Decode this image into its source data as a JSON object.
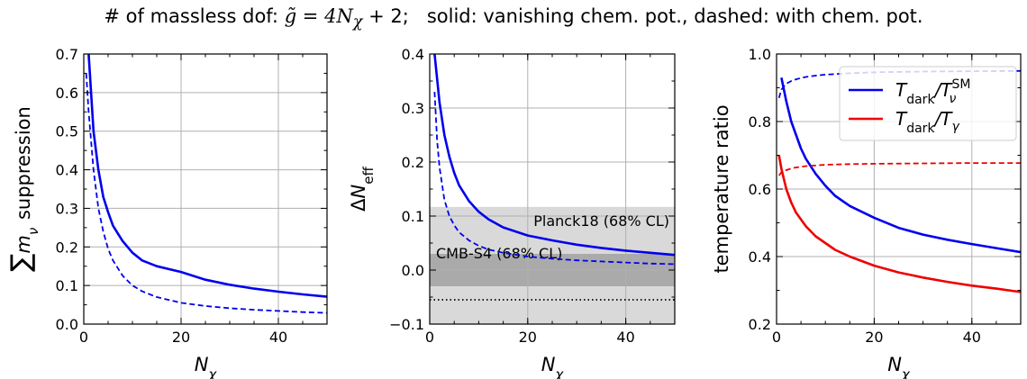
{
  "suptitle": {
    "prefix": "# of massless dof: ",
    "formula": "g̃ = 4N",
    "formula_sub": "χ",
    "formula_tail": " + 2;",
    "suffix": "   solid: vanishing chem. pot., dashed: with chem. pot."
  },
  "colors": {
    "blue": "#0000ee",
    "red": "#ee0000",
    "band_light": "#d9d9d9",
    "band_dark": "#aaaaaa",
    "grid": "#b0b0b0"
  },
  "chart_data": [
    {
      "type": "line",
      "xlabel": "N_χ",
      "ylabel": "∑m_ν suppression",
      "xlim": [
        0,
        50
      ],
      "ylim": [
        0.0,
        0.7
      ],
      "xticks": [
        0,
        20,
        40
      ],
      "yticks": [
        0.0,
        0.1,
        0.2,
        0.3,
        0.4,
        0.5,
        0.6,
        0.7
      ],
      "ytick_labels": [
        "0.0",
        "0.1",
        "0.2",
        "0.3",
        "0.4",
        "0.5",
        "0.6",
        "0.7"
      ],
      "grid": true,
      "series": [
        {
          "style": "solid",
          "color": "blue",
          "x": [
            1,
            2,
            3,
            4,
            5,
            6,
            8,
            10,
            12,
            15,
            20,
            25,
            30,
            35,
            40,
            45,
            50
          ],
          "y": [
            0.7,
            0.5,
            0.4,
            0.33,
            0.29,
            0.255,
            0.215,
            0.185,
            0.165,
            0.15,
            0.135,
            0.115,
            0.102,
            0.092,
            0.084,
            0.077,
            0.071
          ]
        },
        {
          "style": "dashed",
          "color": "blue",
          "x": [
            0.5,
            1,
            2,
            3,
            4,
            5,
            6,
            8,
            10,
            12,
            15,
            20,
            25,
            30,
            35,
            40,
            45,
            50
          ],
          "y": [
            0.65,
            0.55,
            0.4,
            0.3,
            0.24,
            0.195,
            0.165,
            0.125,
            0.1,
            0.085,
            0.07,
            0.055,
            0.047,
            0.041,
            0.037,
            0.034,
            0.031,
            0.029
          ]
        }
      ]
    },
    {
      "type": "line",
      "xlabel": "N_χ",
      "ylabel": "ΔN_eff",
      "xlim": [
        0,
        50
      ],
      "ylim": [
        -0.1,
        0.4
      ],
      "xticks": [
        0,
        20,
        40
      ],
      "yticks": [
        -0.1,
        0.0,
        0.1,
        0.2,
        0.3,
        0.4
      ],
      "ytick_labels": [
        "−0.1",
        "0.0",
        "0.1",
        "0.2",
        "0.3",
        "0.4"
      ],
      "grid": true,
      "bands": [
        {
          "label": "Planck18 (68% CL)",
          "y0": -0.1,
          "y1": 0.117,
          "color": "band_light"
        },
        {
          "label": "CMB-S4 (68% CL)",
          "y0": -0.03,
          "y1": 0.03,
          "color": "band_dark"
        }
      ],
      "hlines": [
        {
          "y": -0.055,
          "style": "dotted"
        }
      ],
      "series": [
        {
          "style": "solid",
          "color": "blue",
          "x": [
            1,
            2,
            3,
            4,
            5,
            6,
            8,
            10,
            12,
            15,
            20,
            25,
            30,
            35,
            40,
            45,
            50
          ],
          "y": [
            0.4,
            0.31,
            0.25,
            0.21,
            0.18,
            0.157,
            0.128,
            0.108,
            0.094,
            0.079,
            0.064,
            0.055,
            0.047,
            0.041,
            0.036,
            0.032,
            0.028
          ]
        },
        {
          "style": "dashed",
          "color": "blue",
          "x": [
            1,
            1.5,
            2,
            3,
            4,
            5,
            6,
            8,
            10,
            12,
            15,
            20,
            25,
            30,
            35,
            40,
            45,
            50
          ],
          "y": [
            0.33,
            0.24,
            0.19,
            0.13,
            0.1,
            0.083,
            0.07,
            0.055,
            0.045,
            0.038,
            0.032,
            0.025,
            0.021,
            0.018,
            0.016,
            0.014,
            0.012,
            0.011
          ]
        }
      ]
    },
    {
      "type": "line",
      "xlabel": "N_χ",
      "ylabel": "temperature ratio",
      "xlim": [
        0,
        50
      ],
      "ylim": [
        0.2,
        1.0
      ],
      "xticks": [
        0,
        20,
        40
      ],
      "yticks": [
        0.2,
        0.4,
        0.6,
        0.8,
        1.0
      ],
      "ytick_labels": [
        "0.2",
        "0.4",
        "0.6",
        "0.8",
        "1.0"
      ],
      "grid": true,
      "legend": "top-right",
      "legend_entries": [
        {
          "main": "T",
          "sub": "dark",
          "slash": "/T",
          "sub2": "ν",
          "sup2": "SM",
          "color": "blue"
        },
        {
          "main": "T",
          "sub": "dark",
          "slash": "/T",
          "sub2": "γ",
          "sup2": "",
          "color": "red"
        }
      ],
      "series": [
        {
          "style": "solid",
          "color": "blue",
          "x": [
            1,
            2,
            3,
            4,
            5,
            6,
            8,
            10,
            12,
            15,
            20,
            25,
            30,
            35,
            40,
            45,
            50
          ],
          "y": [
            0.93,
            0.86,
            0.8,
            0.76,
            0.72,
            0.69,
            0.645,
            0.61,
            0.58,
            0.55,
            0.515,
            0.485,
            0.465,
            0.45,
            0.437,
            0.425,
            0.413
          ]
        },
        {
          "style": "dashed",
          "color": "blue",
          "x": [
            0.5,
            1,
            2,
            3,
            4,
            5,
            6,
            8,
            10,
            15,
            20,
            30,
            40,
            50
          ],
          "y": [
            0.87,
            0.895,
            0.912,
            0.92,
            0.925,
            0.929,
            0.932,
            0.936,
            0.939,
            0.943,
            0.946,
            0.948,
            0.949,
            0.95
          ]
        },
        {
          "style": "solid",
          "color": "red",
          "x": [
            0.5,
            1,
            2,
            3,
            4,
            5,
            6,
            8,
            10,
            12,
            15,
            20,
            25,
            30,
            35,
            40,
            45,
            50
          ],
          "y": [
            0.7,
            0.66,
            0.6,
            0.56,
            0.53,
            0.51,
            0.49,
            0.46,
            0.44,
            0.42,
            0.4,
            0.373,
            0.353,
            0.338,
            0.325,
            0.314,
            0.305,
            0.295
          ]
        },
        {
          "style": "dashed",
          "color": "red",
          "x": [
            0.5,
            1,
            2,
            3,
            4,
            5,
            6,
            8,
            10,
            15,
            20,
            30,
            40,
            50
          ],
          "y": [
            0.64,
            0.65,
            0.656,
            0.661,
            0.664,
            0.666,
            0.668,
            0.67,
            0.672,
            0.674,
            0.675,
            0.676,
            0.677,
            0.677
          ]
        }
      ]
    }
  ]
}
